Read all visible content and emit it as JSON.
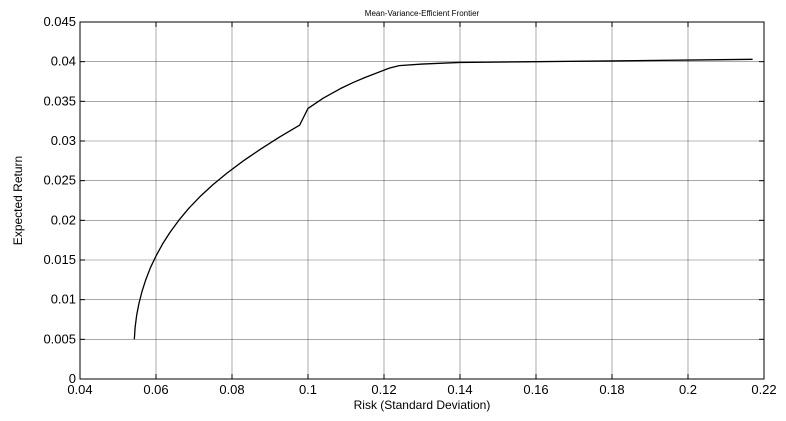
{
  "chart_data": {
    "type": "line",
    "title": "Mean-Variance-Efficient Frontier",
    "xlabel": "Risk (Standard Deviation)",
    "ylabel": "Expected Return",
    "xlim": [
      0.04,
      0.22
    ],
    "ylim": [
      0,
      0.045
    ],
    "xticks": [
      0.04,
      0.06,
      0.08,
      0.1,
      0.12,
      0.14,
      0.16,
      0.18,
      0.2,
      0.22
    ],
    "yticks": [
      0,
      0.005,
      0.01,
      0.015,
      0.02,
      0.025,
      0.03,
      0.035,
      0.04,
      0.045
    ],
    "xtick_labels": [
      "0.04",
      "0.06",
      "0.08",
      "0.1",
      "0.12",
      "0.14",
      "0.16",
      "0.18",
      "0.2",
      "0.22"
    ],
    "ytick_labels": [
      "0",
      "0.005",
      "0.01",
      "0.015",
      "0.02",
      "0.025",
      "0.03",
      "0.035",
      "0.04",
      "0.045"
    ],
    "grid": true,
    "series": [
      {
        "color": "#000000",
        "x": [
          0.0543,
          0.0545,
          0.0549,
          0.0555,
          0.0563,
          0.0573,
          0.0585,
          0.06,
          0.0617,
          0.0637,
          0.066,
          0.0686,
          0.0716,
          0.075,
          0.0788,
          0.083,
          0.0876,
          0.0925,
          0.0978,
          0.1,
          0.104,
          0.1085,
          0.112,
          0.115,
          0.1215,
          0.124,
          0.13,
          0.14,
          0.16,
          0.18,
          0.2,
          0.217
        ],
        "y": [
          0.005,
          0.0065,
          0.008,
          0.0095,
          0.011,
          0.0125,
          0.014,
          0.0155,
          0.017,
          0.0185,
          0.02,
          0.0215,
          0.023,
          0.0245,
          0.026,
          0.0275,
          0.029,
          0.0305,
          0.032,
          0.0341,
          0.0354,
          0.0366,
          0.0374,
          0.038,
          0.0392,
          0.0395,
          0.0397,
          0.0399,
          0.04,
          0.0401,
          0.0402,
          0.0403
        ]
      }
    ]
  }
}
